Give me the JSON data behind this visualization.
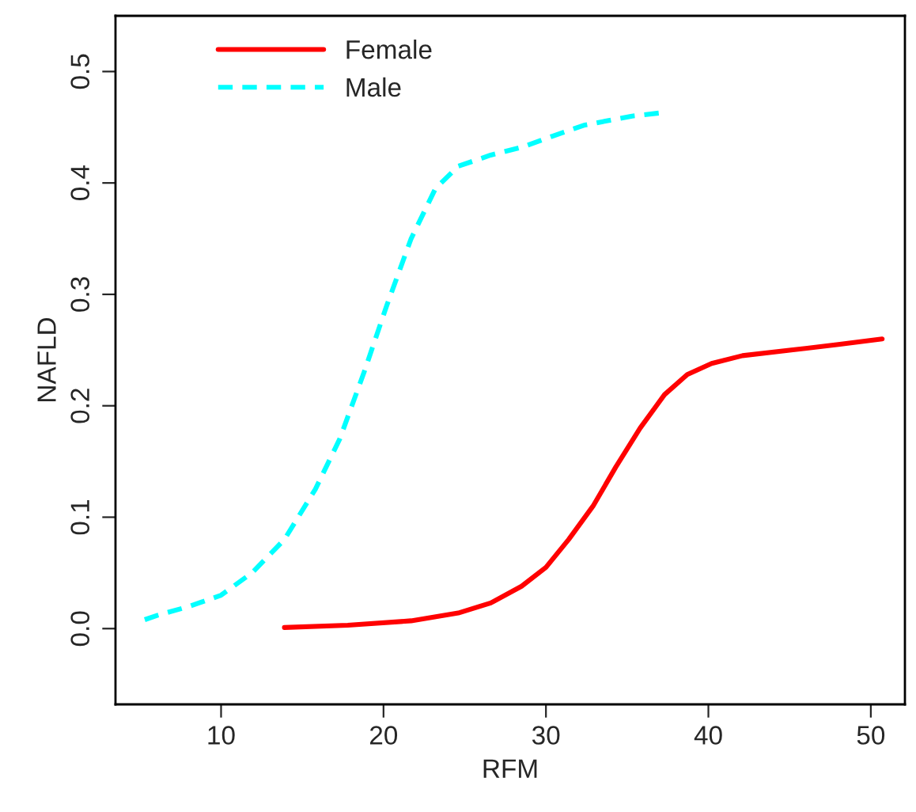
{
  "chart_data": {
    "type": "line",
    "xlabel": "RFM",
    "ylabel": "NAFLD",
    "xlim": [
      3.5,
      52.1
    ],
    "ylim": [
      -0.068,
      0.55
    ],
    "xticks": [
      10,
      20,
      30,
      40,
      50
    ],
    "yticks": [
      {
        "value": 0.0,
        "label": "0.0"
      },
      {
        "value": 0.1,
        "label": "0.1"
      },
      {
        "value": 0.2,
        "label": "0.2"
      },
      {
        "value": 0.3,
        "label": "0.3"
      },
      {
        "value": 0.4,
        "label": "0.4"
      },
      {
        "value": 0.5,
        "label": "0.5"
      }
    ],
    "legend": "top left",
    "grid": false,
    "series": [
      {
        "name": "Female",
        "color": "#ff0000",
        "line_style": "solid",
        "x": [
          13.9,
          17.8,
          21.7,
          24.6,
          26.6,
          28.5,
          30,
          31.4,
          32.9,
          34.3,
          35.8,
          37.3,
          38.7,
          40.2,
          42.1,
          45.1,
          48,
          50.7
        ],
        "values": [
          0.001,
          0.003,
          0.007,
          0.014,
          0.023,
          0.038,
          0.055,
          0.08,
          0.11,
          0.145,
          0.18,
          0.21,
          0.228,
          0.238,
          0.245,
          0.25,
          0.255,
          0.26
        ]
      },
      {
        "name": "Male",
        "color": "#00ffff",
        "line_style": "dashed",
        "x": [
          5.3,
          6.1,
          8.05,
          10,
          11.9,
          13.9,
          15.8,
          17.3,
          18.8,
          20.2,
          21.7,
          23.2,
          24.6,
          26.6,
          28.5,
          30.4,
          32.4,
          35.3,
          37.1
        ],
        "values": [
          0.008,
          0.012,
          0.02,
          0.03,
          0.05,
          0.08,
          0.125,
          0.17,
          0.23,
          0.29,
          0.35,
          0.395,
          0.415,
          0.425,
          0.432,
          0.442,
          0.452,
          0.46,
          0.463
        ]
      }
    ]
  }
}
